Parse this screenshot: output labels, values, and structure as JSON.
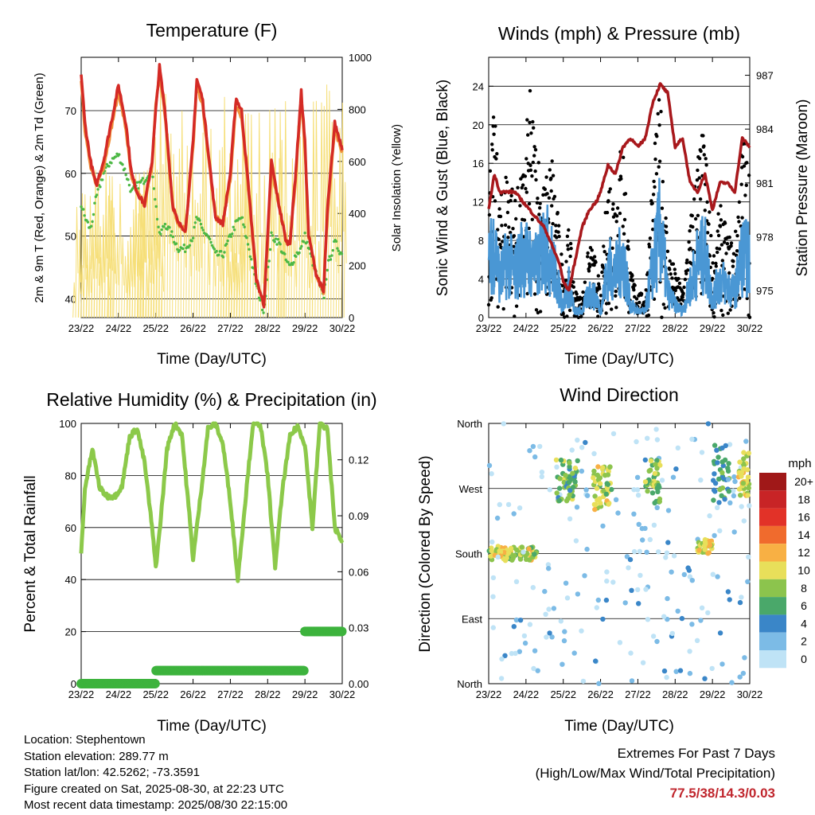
{
  "info": {
    "location": "Location: Stephentown",
    "elevation": "Station elevation: 289.77 m",
    "latlon": "Station lat/lon: 42.5262; -73.3591",
    "created": "Figure created on Sat, 2025-08-30, at 22:23 UTC",
    "recent": "Most recent data timestamp: 2025/08/30 22:15:00"
  },
  "extremes": {
    "title": "Extremes For Past 7 Days",
    "subtitle": "(High/Low/Max Wind/Total Precipitation)",
    "values": "77.5/38/14.3/0.03"
  },
  "colors": {
    "temp2m": "#d42a25",
    "temp9m": "#f0903a",
    "dewpoint": "#4cb845",
    "solar": "#f5dc6a",
    "gust": "#000000",
    "wind": "#4a97d4",
    "pressure": "#a8181c",
    "rh": "#8cc94a",
    "precip": "#3db33d"
  },
  "chart_data": [
    {
      "type": "line",
      "title": "Temperature (F)",
      "xlabel": "Time (Day/UTC)",
      "ylabel": "2m & 9m T (Red, Orange) & 2m Td (Green)",
      "y2label": "Solar Insolation (Yellow)",
      "xticks": [
        "23/22",
        "24/22",
        "25/22",
        "26/22",
        "27/22",
        "28/22",
        "29/22",
        "30/22"
      ],
      "yticks": [
        40,
        50,
        60,
        70
      ],
      "y2ticks": [
        0,
        200,
        400,
        600,
        800,
        1000
      ],
      "ylim": [
        37,
        78.5
      ],
      "y2lim": [
        0,
        1000
      ],
      "grid": true,
      "x": [
        0,
        0.1,
        0.25,
        0.4,
        0.6,
        0.8,
        1.0,
        1.2,
        1.35,
        1.5,
        1.7,
        1.9,
        2.0,
        2.1,
        2.25,
        2.45,
        2.6,
        2.8,
        3.0,
        3.1,
        3.25,
        3.4,
        3.6,
        3.8,
        4.0,
        4.15,
        4.3,
        4.5,
        4.7,
        4.9,
        5.0,
        5.1,
        5.3,
        5.5,
        5.6,
        5.75,
        5.9,
        6.0,
        6.1,
        6.3,
        6.5,
        6.6,
        6.8,
        7.0
      ],
      "series": [
        {
          "values": [
            76,
            68,
            62,
            58,
            62,
            68,
            74,
            68,
            60,
            57,
            55,
            62,
            70,
            77,
            70,
            55,
            52,
            51,
            65,
            75,
            72,
            64,
            53,
            52,
            60,
            72,
            70,
            57,
            43,
            39,
            50,
            62,
            55,
            49,
            49,
            60,
            73,
            65,
            50,
            44,
            41,
            54,
            68,
            64
          ]
        },
        {
          "values": [
            75,
            67,
            61,
            58,
            61,
            67,
            73,
            67,
            59,
            57,
            55,
            61,
            71,
            76,
            69,
            55,
            52,
            51,
            64,
            74,
            71,
            63,
            53,
            52,
            59,
            71,
            69,
            56,
            43,
            39,
            49,
            61,
            55,
            49,
            49,
            59,
            72,
            64,
            50,
            44,
            41,
            53,
            67,
            63
          ]
        },
        {
          "values": [
            55,
            53,
            51,
            56,
            60,
            62,
            63,
            60,
            57,
            58,
            59,
            61,
            55,
            50,
            52,
            50,
            48,
            48,
            50,
            53,
            51,
            50,
            47,
            47,
            50,
            52,
            53,
            48,
            42,
            38,
            44,
            50,
            49,
            46,
            45,
            47,
            48,
            50,
            48,
            44,
            40,
            45,
            49,
            47
          ]
        },
        {
          "values": [
            0,
            0,
            450,
            600,
            0,
            0,
            0,
            580,
            0,
            0,
            600,
            0,
            950,
            0,
            0,
            0,
            0,
            0,
            830,
            0,
            0,
            0,
            0,
            0,
            850,
            700,
            0,
            0,
            0,
            0,
            850,
            0,
            0,
            0,
            0,
            880,
            0,
            0,
            0,
            0,
            0,
            900,
            0,
            0
          ],
          "axis": "y2"
        }
      ]
    },
    {
      "type": "line",
      "title": "Winds (mph) & Pressure (mb)",
      "xlabel": "Time (Day/UTC)",
      "ylabel": "Sonic Wind & Gust (Blue, Black)",
      "y2label": "Station Pressure (Maroon)",
      "xticks": [
        "23/22",
        "24/22",
        "25/22",
        "26/22",
        "27/22",
        "28/22",
        "29/22",
        "30/22"
      ],
      "yticks": [
        0,
        4,
        8,
        12,
        16,
        20,
        24
      ],
      "y2ticks": [
        975,
        978,
        981,
        984,
        987
      ],
      "ylim": [
        0,
        27
      ],
      "y2lim": [
        973.5,
        988
      ],
      "grid": true,
      "x": [
        0,
        0.15,
        0.3,
        0.5,
        0.7,
        0.9,
        1.1,
        1.3,
        1.5,
        1.7,
        1.9,
        2.0,
        2.15,
        2.3,
        2.5,
        2.7,
        2.9,
        3.0,
        3.2,
        3.4,
        3.6,
        3.8,
        4.0,
        4.2,
        4.4,
        4.6,
        4.8,
        5.0,
        5.2,
        5.4,
        5.6,
        5.8,
        6.0,
        6.2,
        6.4,
        6.6,
        6.8,
        7.0
      ],
      "series": [
        {
          "values": [
            16,
            22,
            12,
            17,
            13,
            15,
            24,
            19,
            14,
            18,
            9,
            5,
            10,
            3,
            2,
            8,
            6,
            2,
            16,
            15,
            20,
            5,
            3,
            2,
            16,
            24,
            8,
            5,
            3,
            10,
            18,
            20,
            6,
            12,
            9,
            8,
            20,
            17
          ]
        },
        {
          "values": [
            8,
            12,
            6,
            9,
            7,
            10,
            9,
            8,
            12,
            9,
            4,
            2,
            5,
            1,
            1,
            4,
            3,
            1,
            8,
            7,
            10,
            2,
            1,
            1,
            8,
            14,
            4,
            2,
            1,
            5,
            9,
            10,
            3,
            6,
            5,
            4,
            10,
            9
          ]
        },
        {
          "values": [
            979.5,
            981.5,
            980.5,
            980.5,
            980.5,
            980.0,
            979.5,
            979.0,
            978.5,
            977.5,
            976.5,
            975.5,
            975.0,
            976.5,
            978.5,
            979.5,
            980.0,
            980.5,
            982.0,
            981.5,
            983.0,
            983.5,
            983.0,
            983.5,
            985.5,
            986.5,
            986.0,
            983.0,
            983.5,
            981.0,
            980.5,
            981.5,
            979.5,
            981.0,
            981.0,
            980.5,
            983.5,
            983.0
          ],
          "axis": "y2"
        }
      ]
    },
    {
      "type": "line",
      "title": "Relative Humidity (%) & Precipitation (in)",
      "xlabel": "Time (Day/UTC)",
      "ylabel": "Percent & Total Rainfall",
      "xticks": [
        "23/22",
        "24/22",
        "25/22",
        "26/22",
        "27/22",
        "28/22",
        "29/22",
        "30/22"
      ],
      "yticks": [
        0,
        20,
        40,
        60,
        80,
        100
      ],
      "y2ticks": [
        "0.00",
        "0.03",
        "0.06",
        "0.09",
        "0.12"
      ],
      "ylim": [
        0,
        100
      ],
      "y2lim": [
        0,
        0.1395
      ],
      "grid": true,
      "x": [
        0,
        0.1,
        0.3,
        0.5,
        0.7,
        0.9,
        1.1,
        1.3,
        1.5,
        1.7,
        1.9,
        2.0,
        2.1,
        2.3,
        2.5,
        2.7,
        2.9,
        3.0,
        3.2,
        3.4,
        3.6,
        3.8,
        4.0,
        4.2,
        4.4,
        4.6,
        4.8,
        5.0,
        5.2,
        5.4,
        5.6,
        5.8,
        6.0,
        6.2,
        6.4,
        6.6,
        6.8,
        7.0
      ],
      "series": [
        {
          "values": [
            50,
            75,
            90,
            75,
            72,
            72,
            76,
            95,
            98,
            85,
            60,
            45,
            58,
            90,
            100,
            96,
            65,
            48,
            72,
            98,
            100,
            92,
            70,
            40,
            70,
            99,
            100,
            80,
            45,
            75,
            95,
            99,
            92,
            60,
            100,
            98,
            60,
            55
          ]
        },
        {
          "values": [
            0,
            0,
            0,
            0,
            0,
            0,
            0,
            0,
            0,
            0,
            0,
            0.007,
            0.007,
            0.007,
            0.007,
            0.007,
            0.007,
            0.007,
            0.007,
            0.007,
            0.007,
            0.007,
            0.007,
            0.007,
            0.007,
            0.007,
            0.007,
            0.007,
            0.007,
            0.007,
            0.007,
            0.007,
            0.028,
            0.028,
            0.028,
            0.028,
            0.028,
            0.028
          ],
          "axis": "y2"
        }
      ]
    },
    {
      "type": "scatter",
      "title": "Wind Direction",
      "xlabel": "Time (Day/UTC)",
      "ylabel": "Direction (Colored By Speed)",
      "xticks": [
        "23/22",
        "24/22",
        "25/22",
        "26/22",
        "27/22",
        "28/22",
        "29/22",
        "30/22"
      ],
      "yticks": [
        "North",
        "East",
        "South",
        "West",
        "North"
      ],
      "ylim": [
        0,
        360
      ],
      "legend_title": "mph",
      "legend_labels": [
        "20+",
        "18",
        "16",
        "14",
        "12",
        "10",
        "8",
        "6",
        "4",
        "2",
        "0"
      ],
      "legend_colors": [
        "#a01818",
        "#c82426",
        "#e23228",
        "#f06b2d",
        "#f8b044",
        "#e8df5a",
        "#8cc44d",
        "#4aa86a",
        "#3a86c8",
        "#7cbbe6",
        "#bfe3f6"
      ],
      "legend_position": "right",
      "clusters": [
        {
          "x0": 0.0,
          "x1": 1.3,
          "dir0": 170,
          "dir1": 190,
          "spd": 9,
          "n": 80
        },
        {
          "x0": 0.0,
          "x1": 7.0,
          "dir0": 0,
          "dir1": 360,
          "spd": 1,
          "n": 200
        },
        {
          "x0": 1.8,
          "x1": 2.4,
          "dir0": 250,
          "dir1": 310,
          "spd": 7,
          "n": 50
        },
        {
          "x0": 2.8,
          "x1": 3.3,
          "dir0": 240,
          "dir1": 300,
          "spd": 9,
          "n": 50
        },
        {
          "x0": 4.2,
          "x1": 4.6,
          "dir0": 250,
          "dir1": 310,
          "spd": 8,
          "n": 40
        },
        {
          "x0": 5.6,
          "x1": 6.0,
          "dir0": 180,
          "dir1": 200,
          "spd": 10,
          "n": 40
        },
        {
          "x0": 6.7,
          "x1": 7.0,
          "dir0": 260,
          "dir1": 320,
          "spd": 10,
          "n": 40
        },
        {
          "x0": 6.0,
          "x1": 6.5,
          "dir0": 250,
          "dir1": 330,
          "spd": 5,
          "n": 40
        }
      ]
    }
  ]
}
